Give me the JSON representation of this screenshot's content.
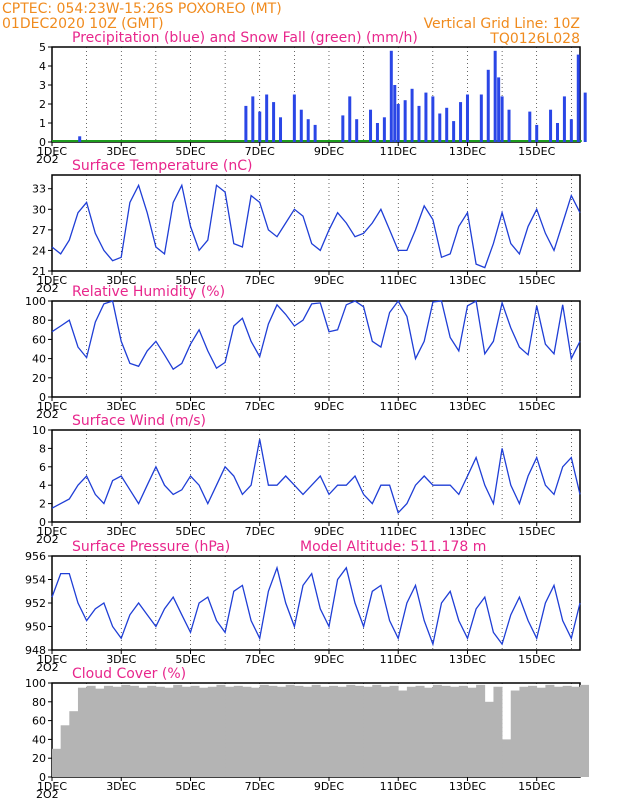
{
  "header": {
    "line1": "CPTEC:   054:23W-15:26S   POXOREO (MT)",
    "line2": "01DEC2020 10Z (GMT)",
    "grid_note": "Vertical Grid Line: 10Z",
    "model": "TQ0126L028"
  },
  "x_ticks": [
    "1DEC",
    "3DEC",
    "5DEC",
    "7DEC",
    "9DEC",
    "11DEC",
    "13DEC",
    "15DEC"
  ],
  "y_small_label": "2O2",
  "colors": {
    "orange": "#f08b1e",
    "title": "#e8268c",
    "line": "#1f3ed6",
    "bar": "#2a46e6",
    "snow": "#1e9b1e",
    "cloud": "#b4b4b4"
  },
  "chart_data": [
    {
      "type": "bar",
      "title": "Precipitation (blue) and Snow Fall (green) (mm/h)",
      "ylim": [
        0,
        5
      ],
      "yticks": [
        "0",
        "1",
        "2",
        "3",
        "4",
        "5"
      ],
      "x_unit": "days since 01DEC 10Z",
      "series": [
        {
          "name": "Precipitation",
          "x": [
            0.8,
            5.6,
            5.8,
            6.0,
            6.2,
            6.4,
            6.6,
            7.0,
            7.2,
            7.4,
            7.6,
            8.4,
            8.6,
            8.8,
            9.2,
            9.4,
            9.6,
            9.8,
            9.9,
            10.0,
            10.2,
            10.4,
            10.6,
            10.8,
            11.0,
            11.2,
            11.4,
            11.6,
            11.8,
            12.0,
            12.4,
            12.6,
            12.8,
            12.9,
            13.0,
            13.2,
            13.8,
            14.0,
            14.4,
            14.6,
            14.8,
            15.0,
            15.2,
            15.4
          ],
          "values": [
            0.3,
            1.9,
            2.4,
            1.6,
            2.5,
            2.1,
            1.3,
            2.5,
            1.7,
            1.2,
            0.9,
            1.4,
            2.4,
            1.2,
            1.7,
            1.0,
            1.3,
            4.8,
            3.0,
            2.0,
            2.2,
            2.8,
            1.9,
            2.6,
            2.4,
            1.5,
            1.8,
            1.1,
            2.1,
            2.5,
            2.5,
            3.8,
            4.8,
            3.4,
            2.4,
            1.7,
            1.6,
            0.9,
            1.7,
            1.0,
            2.4,
            1.2,
            4.6,
            2.6
          ]
        },
        {
          "name": "Snow Fall",
          "x": [
            0,
            15.3
          ],
          "values": [
            0,
            0
          ]
        }
      ]
    },
    {
      "type": "line",
      "title": "Surface Temperature (nC)",
      "ylim": [
        21,
        35
      ],
      "yticks": [
        "21",
        "24",
        "27",
        "30",
        "33"
      ],
      "x": [
        0,
        0.25,
        0.5,
        0.75,
        1,
        1.25,
        1.5,
        1.75,
        2,
        2.25,
        2.5,
        2.75,
        3,
        3.25,
        3.5,
        3.75,
        4,
        4.25,
        4.5,
        4.75,
        5,
        5.25,
        5.5,
        5.75,
        6,
        6.25,
        6.5,
        6.75,
        7,
        7.25,
        7.5,
        7.75,
        8,
        8.25,
        8.5,
        8.75,
        9,
        9.25,
        9.5,
        9.75,
        10,
        10.25,
        10.5,
        10.75,
        11,
        11.25,
        11.5,
        11.75,
        12,
        12.25,
        12.5,
        12.75,
        13,
        13.25,
        13.5,
        13.75,
        14,
        14.25,
        14.5,
        14.75,
        15,
        15.25
      ],
      "values": [
        24.5,
        23.5,
        25.5,
        29.5,
        31,
        26.5,
        24,
        22.5,
        23,
        31,
        33.5,
        29.5,
        24.5,
        23.5,
        31,
        33.5,
        27.5,
        24,
        25.5,
        33.5,
        32.5,
        25,
        24.5,
        32,
        31,
        27,
        26,
        28,
        30,
        29,
        25,
        24,
        27,
        29.5,
        28,
        26,
        26.5,
        28,
        30,
        27,
        24,
        24,
        27,
        30.5,
        28.5,
        23,
        23.5,
        27.5,
        29.5,
        22,
        21.5,
        25,
        29.5,
        25,
        23.5,
        27.5,
        30,
        26.5,
        24,
        28,
        32,
        29.5
      ]
    },
    {
      "type": "line",
      "title": "Relative Humidity (%)",
      "ylim": [
        0,
        100
      ],
      "yticks": [
        "0",
        "20",
        "40",
        "60",
        "80",
        "100"
      ],
      "x": [
        0,
        0.25,
        0.5,
        0.75,
        1,
        1.25,
        1.5,
        1.75,
        2,
        2.25,
        2.5,
        2.75,
        3,
        3.25,
        3.5,
        3.75,
        4,
        4.25,
        4.5,
        4.75,
        5,
        5.25,
        5.5,
        5.75,
        6,
        6.25,
        6.5,
        6.75,
        7,
        7.25,
        7.5,
        7.75,
        8,
        8.25,
        8.5,
        8.75,
        9,
        9.25,
        9.5,
        9.75,
        10,
        10.25,
        10.5,
        10.75,
        11,
        11.25,
        11.5,
        11.75,
        12,
        12.25,
        12.5,
        12.75,
        13,
        13.25,
        13.5,
        13.75,
        14,
        14.25,
        14.5,
        14.75,
        15,
        15.25
      ],
      "values": [
        68,
        74,
        80,
        52,
        41,
        78,
        97,
        100,
        58,
        35,
        32,
        48,
        58,
        44,
        29,
        35,
        55,
        70,
        48,
        30,
        36,
        74,
        82,
        58,
        42,
        76,
        96,
        86,
        74,
        80,
        97,
        98,
        68,
        70,
        96,
        100,
        94,
        58,
        52,
        88,
        100,
        84,
        40,
        58,
        99,
        100,
        62,
        48,
        95,
        100,
        45,
        58,
        98,
        72,
        52,
        44,
        95,
        55,
        45,
        96,
        40,
        58
      ]
    },
    {
      "type": "line",
      "title": "Surface Wind (m/s)",
      "ylim": [
        0,
        10
      ],
      "yticks": [
        "0",
        "2",
        "4",
        "6",
        "8",
        "10"
      ],
      "x": [
        0,
        0.25,
        0.5,
        0.75,
        1,
        1.25,
        1.5,
        1.75,
        2,
        2.25,
        2.5,
        2.75,
        3,
        3.25,
        3.5,
        3.75,
        4,
        4.25,
        4.5,
        4.75,
        5,
        5.25,
        5.5,
        5.75,
        6,
        6.25,
        6.5,
        6.75,
        7,
        7.25,
        7.5,
        7.75,
        8,
        8.25,
        8.5,
        8.75,
        9,
        9.25,
        9.5,
        9.75,
        10,
        10.25,
        10.5,
        10.75,
        11,
        11.25,
        11.5,
        11.75,
        12,
        12.25,
        12.5,
        12.75,
        13,
        13.25,
        13.5,
        13.75,
        14,
        14.25,
        14.5,
        14.75,
        15,
        15.25
      ],
      "values": [
        1.5,
        2,
        2.5,
        4,
        5,
        3,
        2,
        4.5,
        5,
        3.5,
        2,
        4,
        6,
        4,
        3,
        3.5,
        5,
        4,
        2,
        4,
        6,
        5,
        3,
        4,
        9,
        4,
        4,
        5,
        4,
        3,
        4,
        5,
        3,
        4,
        4,
        5,
        3,
        2,
        4,
        4,
        1,
        2,
        4,
        5,
        4,
        4,
        4,
        3,
        5,
        7,
        4,
        2,
        8,
        4,
        2,
        5,
        7,
        4,
        3,
        6,
        7,
        3
      ]
    },
    {
      "type": "line",
      "title": "Surface Pressure (hPa)",
      "subtitle": "Model Altitude: 511.178  m",
      "ylim": [
        948,
        956
      ],
      "yticks": [
        "948",
        "950",
        "952",
        "954",
        "956"
      ],
      "x": [
        0,
        0.25,
        0.5,
        0.75,
        1,
        1.25,
        1.5,
        1.75,
        2,
        2.25,
        2.5,
        2.75,
        3,
        3.25,
        3.5,
        3.75,
        4,
        4.25,
        4.5,
        4.75,
        5,
        5.25,
        5.5,
        5.75,
        6,
        6.25,
        6.5,
        6.75,
        7,
        7.25,
        7.5,
        7.75,
        8,
        8.25,
        8.5,
        8.75,
        9,
        9.25,
        9.5,
        9.75,
        10,
        10.25,
        10.5,
        10.75,
        11,
        11.25,
        11.5,
        11.75,
        12,
        12.25,
        12.5,
        12.75,
        13,
        13.25,
        13.5,
        13.75,
        14,
        14.25,
        14.5,
        14.75,
        15,
        15.25
      ],
      "values": [
        952.5,
        954.5,
        954.5,
        952,
        950.5,
        951.5,
        952,
        950,
        949,
        951,
        952,
        951,
        950,
        951.5,
        952.5,
        951,
        949.5,
        952,
        952.5,
        950.5,
        949.5,
        953,
        953.5,
        950.5,
        949,
        953,
        955,
        952,
        950,
        953.5,
        954.5,
        951.5,
        950,
        954,
        955,
        952,
        950,
        953,
        953.5,
        950.5,
        949,
        952,
        953.5,
        950.5,
        948.5,
        952,
        953,
        950.5,
        949,
        951.5,
        952.5,
        949.5,
        948.5,
        951,
        952.5,
        950.5,
        949,
        952,
        953.5,
        950.5,
        949,
        952
      ]
    },
    {
      "type": "area",
      "title": "Cloud Cover (%)",
      "ylim": [
        0,
        100
      ],
      "yticks": [
        "0",
        "20",
        "40",
        "60",
        "80",
        "100"
      ],
      "x": [
        0,
        0.25,
        0.5,
        0.75,
        1,
        1.25,
        1.5,
        1.75,
        2,
        2.25,
        2.5,
        2.75,
        3,
        3.25,
        3.5,
        3.75,
        4,
        4.25,
        4.5,
        4.75,
        5,
        5.25,
        5.5,
        5.75,
        6,
        6.25,
        6.5,
        6.75,
        7,
        7.25,
        7.5,
        7.75,
        8,
        8.25,
        8.5,
        8.75,
        9,
        9.25,
        9.5,
        9.75,
        10,
        10.25,
        10.5,
        10.75,
        11,
        11.25,
        11.5,
        11.75,
        12,
        12.25,
        12.5,
        12.75,
        13,
        13.25,
        13.5,
        13.75,
        14,
        14.25,
        14.5,
        14.75,
        15,
        15.25
      ],
      "values": [
        30,
        55,
        70,
        95,
        97,
        94,
        97,
        96,
        98,
        97,
        95,
        97,
        96,
        95,
        98,
        96,
        97,
        95,
        96,
        98,
        96,
        97,
        96,
        95,
        98,
        97,
        96,
        98,
        97,
        96,
        98,
        96,
        97,
        96,
        98,
        97,
        96,
        98,
        96,
        97,
        92,
        96,
        97,
        95,
        98,
        97,
        96,
        97,
        95,
        98,
        80,
        96,
        40,
        92,
        96,
        97,
        95,
        98,
        96,
        97,
        96,
        98
      ]
    }
  ]
}
